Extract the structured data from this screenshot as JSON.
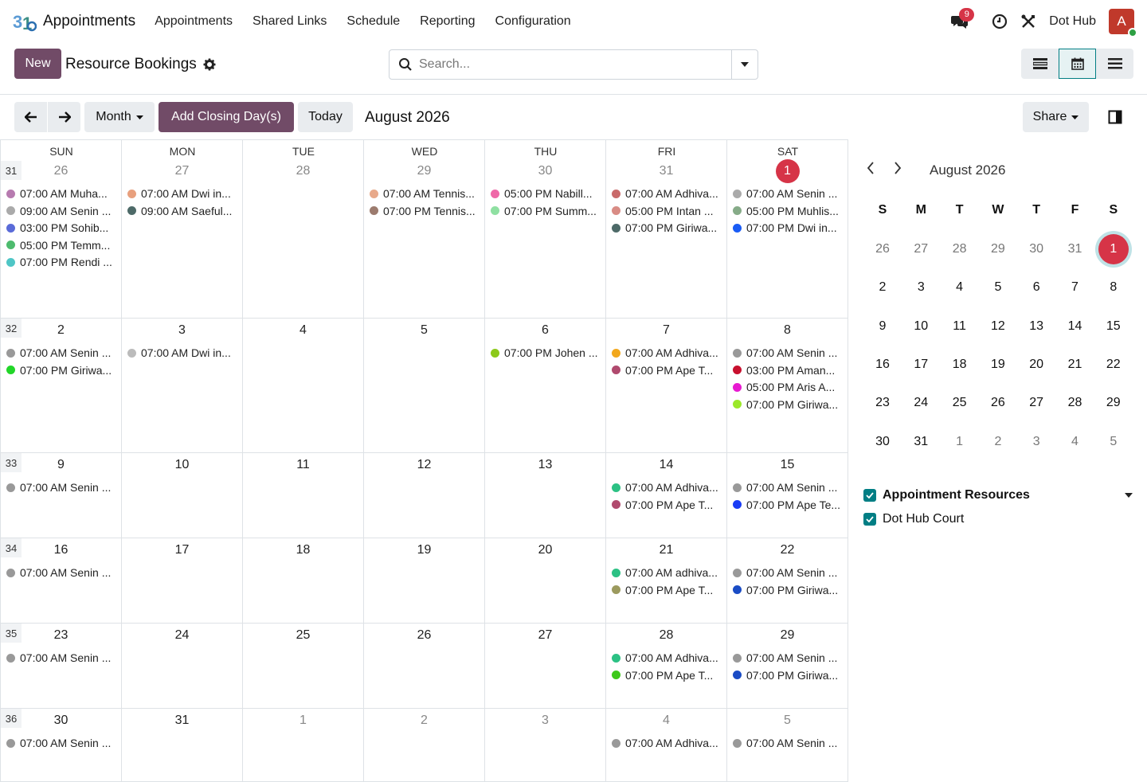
{
  "navbar": {
    "brand": "Appointments",
    "menu": [
      "Appointments",
      "Shared Links",
      "Schedule",
      "Reporting",
      "Configuration"
    ],
    "messages_badge": "9",
    "company": "Dot Hub",
    "avatar_letter": "A"
  },
  "control": {
    "new_label": "New",
    "title": "Resource Bookings",
    "search_placeholder": "Search..."
  },
  "toolbar": {
    "scale": "Month",
    "closing_label": "Add Closing Day(s)",
    "today_label": "Today",
    "period": "August 2026",
    "share_label": "Share"
  },
  "calendar": {
    "days_of_week": [
      "SUN",
      "MON",
      "TUE",
      "WED",
      "THU",
      "FRI",
      "SAT"
    ],
    "weeks": [
      {
        "week": "31",
        "days": [
          {
            "n": "26",
            "other": true,
            "events": [
              {
                "t": "07:00 AM Muha...",
                "c": "#b77bb0"
              },
              {
                "t": "09:00 AM Senin ...",
                "c": "#aaaaaa"
              },
              {
                "t": "03:00 PM Sohib...",
                "c": "#5a6bd8"
              },
              {
                "t": "05:00 PM Temm...",
                "c": "#4dbb6e"
              },
              {
                "t": "07:00 PM Rendi ...",
                "c": "#4fc6c6"
              }
            ]
          },
          {
            "n": "27",
            "other": true,
            "events": [
              {
                "t": "07:00 AM Dwi in...",
                "c": "#e8a07e"
              },
              {
                "t": "09:00 AM Saeful...",
                "c": "#4d6a68"
              }
            ]
          },
          {
            "n": "28",
            "other": true,
            "events": []
          },
          {
            "n": "29",
            "other": true,
            "events": [
              {
                "t": "07:00 AM Tennis...",
                "c": "#e8a98a"
              },
              {
                "t": "07:00 PM Tennis...",
                "c": "#9c7b6e"
              }
            ]
          },
          {
            "n": "30",
            "other": true,
            "events": [
              {
                "t": "05:00 PM Nabill...",
                "c": "#ef68a8"
              },
              {
                "t": "07:00 PM Summ...",
                "c": "#8fe0a2"
              }
            ]
          },
          {
            "n": "31",
            "other": true,
            "events": [
              {
                "t": "07:00 AM Adhiva...",
                "c": "#c96a6a"
              },
              {
                "t": "05:00 PM Intan ...",
                "c": "#d98c85"
              },
              {
                "t": "07:00 PM Giriwa...",
                "c": "#4d6a68"
              }
            ]
          },
          {
            "n": "1",
            "today": true,
            "events": [
              {
                "t": "07:00 AM Senin ...",
                "c": "#aaaaaa"
              },
              {
                "t": "05:00 PM Muhlis...",
                "c": "#86ab88"
              },
              {
                "t": "07:00 PM Dwi in...",
                "c": "#1a5cf5"
              }
            ]
          }
        ]
      },
      {
        "week": "32",
        "days": [
          {
            "n": "2",
            "events": [
              {
                "t": "07:00 AM Senin ...",
                "c": "#999999"
              },
              {
                "t": "07:00 PM Giriwa...",
                "c": "#22d629"
              }
            ]
          },
          {
            "n": "3",
            "events": [
              {
                "t": "07:00 AM Dwi in...",
                "c": "#bbbbbb"
              }
            ]
          },
          {
            "n": "4",
            "events": []
          },
          {
            "n": "5",
            "events": []
          },
          {
            "n": "6",
            "events": [
              {
                "t": "07:00 PM Johen ...",
                "c": "#8cc91a"
              }
            ]
          },
          {
            "n": "7",
            "events": [
              {
                "t": "07:00 AM Adhiva...",
                "c": "#f2a81d"
              },
              {
                "t": "07:00 PM Ape T...",
                "c": "#b04a6e"
              }
            ]
          },
          {
            "n": "8",
            "events": [
              {
                "t": "07:00 AM Senin ...",
                "c": "#999999"
              },
              {
                "t": "03:00 PM Aman...",
                "c": "#c8102e"
              },
              {
                "t": "05:00 PM Aris A...",
                "c": "#e81ad1"
              },
              {
                "t": "07:00 PM Giriwa...",
                "c": "#9be82a"
              }
            ]
          }
        ]
      },
      {
        "week": "33",
        "days": [
          {
            "n": "9",
            "events": [
              {
                "t": "07:00 AM Senin ...",
                "c": "#999999"
              }
            ]
          },
          {
            "n": "10",
            "events": []
          },
          {
            "n": "11",
            "events": []
          },
          {
            "n": "12",
            "events": []
          },
          {
            "n": "13",
            "events": []
          },
          {
            "n": "14",
            "events": [
              {
                "t": "07:00 AM Adhiva...",
                "c": "#2cc184"
              },
              {
                "t": "07:00 PM Ape T...",
                "c": "#b04a6e"
              }
            ]
          },
          {
            "n": "15",
            "events": [
              {
                "t": "07:00 AM Senin ...",
                "c": "#999999"
              },
              {
                "t": "07:00 PM Ape Te...",
                "c": "#1a3cf5"
              }
            ]
          }
        ]
      },
      {
        "week": "34",
        "days": [
          {
            "n": "16",
            "events": [
              {
                "t": "07:00 AM Senin ...",
                "c": "#999999"
              }
            ]
          },
          {
            "n": "17",
            "events": []
          },
          {
            "n": "18",
            "events": []
          },
          {
            "n": "19",
            "events": []
          },
          {
            "n": "20",
            "events": []
          },
          {
            "n": "21",
            "events": [
              {
                "t": "07:00 AM adhiva...",
                "c": "#2cc184"
              },
              {
                "t": "07:00 PM Ape T...",
                "c": "#9c9a5e"
              }
            ]
          },
          {
            "n": "22",
            "events": [
              {
                "t": "07:00 AM Senin ...",
                "c": "#999999"
              },
              {
                "t": "07:00 PM Giriwa...",
                "c": "#1a4cc5"
              }
            ]
          }
        ]
      },
      {
        "week": "35",
        "days": [
          {
            "n": "23",
            "events": [
              {
                "t": "07:00 AM Senin ...",
                "c": "#999999"
              }
            ]
          },
          {
            "n": "24",
            "events": []
          },
          {
            "n": "25",
            "events": []
          },
          {
            "n": "26",
            "events": []
          },
          {
            "n": "27",
            "events": []
          },
          {
            "n": "28",
            "events": [
              {
                "t": "07:00 AM Adhiva...",
                "c": "#2cc184"
              },
              {
                "t": "07:00 PM Ape T...",
                "c": "#3ec91a"
              }
            ]
          },
          {
            "n": "29",
            "events": [
              {
                "t": "07:00 AM Senin ...",
                "c": "#999999"
              },
              {
                "t": "07:00 PM Giriwa...",
                "c": "#1a4cc5"
              }
            ]
          }
        ]
      },
      {
        "week": "36",
        "days": [
          {
            "n": "30",
            "events": [
              {
                "t": "07:00 AM Senin ...",
                "c": "#999999"
              }
            ]
          },
          {
            "n": "31",
            "events": []
          },
          {
            "n": "1",
            "other": true,
            "events": []
          },
          {
            "n": "2",
            "other": true,
            "events": []
          },
          {
            "n": "3",
            "other": true,
            "events": []
          },
          {
            "n": "4",
            "other": true,
            "events": [
              {
                "t": "07:00 AM Adhiva...",
                "c": "#999999"
              }
            ]
          },
          {
            "n": "5",
            "other": true,
            "events": [
              {
                "t": "07:00 AM Senin ...",
                "c": "#999999"
              }
            ]
          }
        ]
      }
    ]
  },
  "mini_calendar": {
    "title": "August 2026",
    "days_of_week": [
      "S",
      "M",
      "T",
      "W",
      "T",
      "F",
      "S"
    ],
    "weeks": [
      [
        [
          "26",
          "o"
        ],
        [
          "27",
          "o"
        ],
        [
          "28",
          "o"
        ],
        [
          "29",
          "o"
        ],
        [
          "30",
          "o"
        ],
        [
          "31",
          "o"
        ],
        [
          "1",
          "t"
        ]
      ],
      [
        [
          "2",
          ""
        ],
        [
          "3",
          ""
        ],
        [
          "4",
          ""
        ],
        [
          "5",
          ""
        ],
        [
          "6",
          ""
        ],
        [
          "7",
          ""
        ],
        [
          "8",
          ""
        ]
      ],
      [
        [
          "9",
          ""
        ],
        [
          "10",
          ""
        ],
        [
          "11",
          ""
        ],
        [
          "12",
          ""
        ],
        [
          "13",
          ""
        ],
        [
          "14",
          ""
        ],
        [
          "15",
          ""
        ]
      ],
      [
        [
          "16",
          ""
        ],
        [
          "17",
          ""
        ],
        [
          "18",
          ""
        ],
        [
          "19",
          ""
        ],
        [
          "20",
          ""
        ],
        [
          "21",
          ""
        ],
        [
          "22",
          ""
        ]
      ],
      [
        [
          "23",
          ""
        ],
        [
          "24",
          ""
        ],
        [
          "25",
          ""
        ],
        [
          "26",
          ""
        ],
        [
          "27",
          ""
        ],
        [
          "28",
          ""
        ],
        [
          "29",
          ""
        ]
      ],
      [
        [
          "30",
          ""
        ],
        [
          "31",
          ""
        ],
        [
          "1",
          "o"
        ],
        [
          "2",
          "o"
        ],
        [
          "3",
          "o"
        ],
        [
          "4",
          "o"
        ],
        [
          "5",
          "o"
        ]
      ]
    ]
  },
  "filters": {
    "section_label": "Appointment Resources",
    "items": [
      "Dot Hub Court"
    ]
  }
}
